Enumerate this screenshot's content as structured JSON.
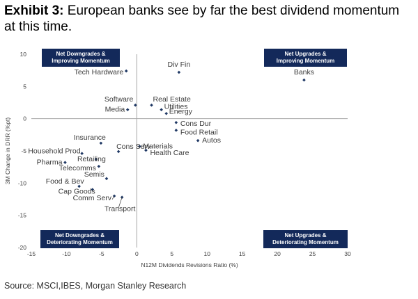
{
  "header": {
    "exhibit": "Exhibit 3:",
    "title": "European banks see by far the best dividend momentum at this time."
  },
  "footer": {
    "source": "Source: MSCI,IBES, Morgan Stanley Research"
  },
  "colors": {
    "marker": "#1f3864",
    "quadrant_box": "#13295a",
    "axis": "#a6a6a6"
  },
  "chart_data": {
    "type": "scatter",
    "xlabel": "N12M Dividends Revisions Ratio (%)",
    "ylabel": "3M Change in DRR (%pt)",
    "xlim": [
      -15,
      30
    ],
    "ylim": [
      -20,
      10
    ],
    "xticks": [
      -15,
      -10,
      -5,
      0,
      5,
      10,
      15,
      20,
      25,
      30
    ],
    "yticks": [
      10,
      5,
      0,
      -5,
      -10,
      -15,
      -20
    ],
    "quadrant_labels": [
      {
        "id": "tl",
        "lines": [
          "Net Downgrades &",
          "Improving Momentum"
        ]
      },
      {
        "id": "tr",
        "lines": [
          "Net Upgrades &",
          "Improving Momentum"
        ]
      },
      {
        "id": "bl",
        "lines": [
          "Net Downgrades &",
          "Deteriorating Momentum"
        ]
      },
      {
        "id": "br",
        "lines": [
          "Net Upgrades &",
          "Deteriorating Momentum"
        ]
      }
    ],
    "points": [
      {
        "label": "Div Fin",
        "x": 6.0,
        "y": 7.2
      },
      {
        "label": "Banks",
        "x": 23.8,
        "y": 6.0
      },
      {
        "label": "Tech Hardware",
        "x": -1.5,
        "y": 7.4
      },
      {
        "label": "Software",
        "x": -0.2,
        "y": 2.1
      },
      {
        "label": "Media",
        "x": -1.3,
        "y": 1.4
      },
      {
        "label": "Real Estate",
        "x": 2.1,
        "y": 2.1
      },
      {
        "label": "Utilities",
        "x": 3.5,
        "y": 1.4
      },
      {
        "label": "Energy",
        "x": 4.2,
        "y": 0.8
      },
      {
        "label": "Cons Dur",
        "x": 5.6,
        "y": -0.6
      },
      {
        "label": "Food Retail",
        "x": 5.6,
        "y": -1.8
      },
      {
        "label": "Autos",
        "x": 8.7,
        "y": -3.4
      },
      {
        "label": "Materials",
        "x": 0.4,
        "y": -4.3
      },
      {
        "label": "Health Care",
        "x": 1.3,
        "y": -4.9
      },
      {
        "label": "Cons Serv",
        "x": -2.6,
        "y": -5.1
      },
      {
        "label": "Insurance",
        "x": -5.1,
        "y": -3.8
      },
      {
        "label": "Household Prod",
        "x": -7.8,
        "y": -5.4
      },
      {
        "label": "Retailing",
        "x": -5.8,
        "y": -6.3
      },
      {
        "label": "Pharma",
        "x": -10.2,
        "y": -6.8
      },
      {
        "label": "Telecomms",
        "x": -5.4,
        "y": -7.4
      },
      {
        "label": "Semis",
        "x": -4.3,
        "y": -9.3
      },
      {
        "label": "Food & Bev",
        "x": -8.2,
        "y": -10.5
      },
      {
        "label": "Cap Goods",
        "x": -6.3,
        "y": -11.0
      },
      {
        "label": "Comm Serv",
        "x": -3.2,
        "y": -12.0
      },
      {
        "label": "Transport",
        "x": -2.1,
        "y": -12.2
      }
    ]
  }
}
